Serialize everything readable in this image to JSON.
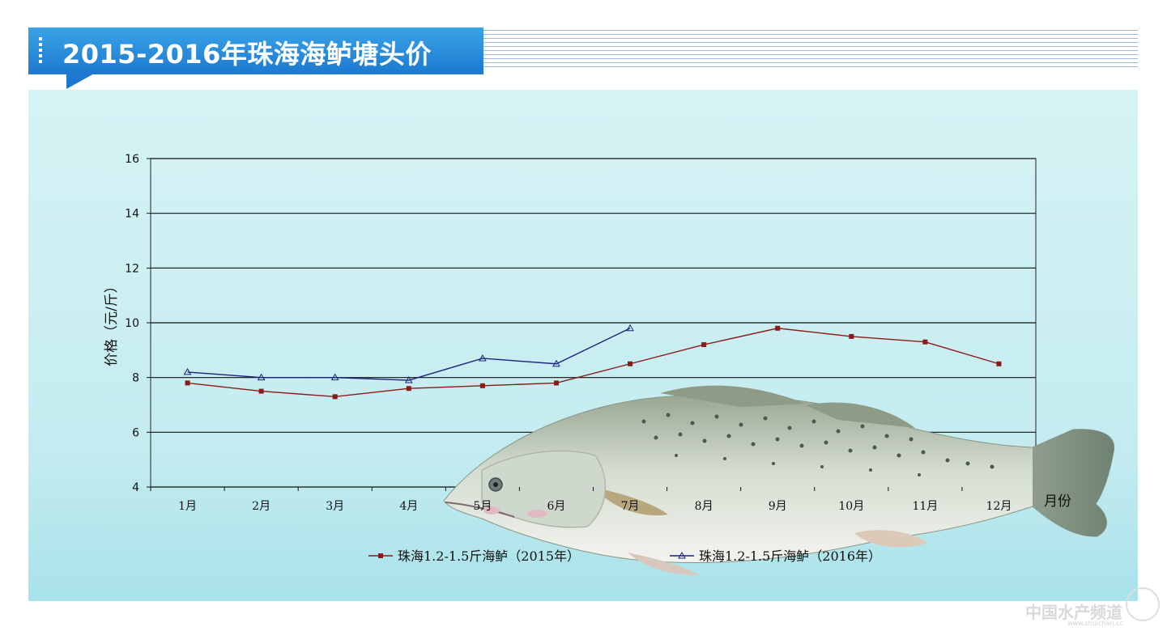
{
  "header": {
    "title": "2015-2016年珠海海鲈塘头价"
  },
  "watermark": {
    "text": "中国水产频道",
    "url": "www.shuichan.cc"
  },
  "colors": {
    "series_2015": "#8b1a1a",
    "series_2016": "#1a237e",
    "banner": "#1c78d0",
    "panel": "#d6f3f5"
  },
  "chart_data": {
    "type": "line",
    "title": "",
    "ylabel": "价格（元/斤）",
    "xlabel": "月份",
    "ylim": [
      4,
      16
    ],
    "yticks": [
      "4",
      "6",
      "8",
      "10",
      "12",
      "14",
      "16"
    ],
    "categories": [
      "1月",
      "2月",
      "3月",
      "4月",
      "5月",
      "6月",
      "7月",
      "8月",
      "9月",
      "10月",
      "11月",
      "12月"
    ],
    "grid": true,
    "legend_position": "bottom",
    "series": [
      {
        "name": "珠海1.2-1.5斤海鲈（2015年）",
        "marker": "square",
        "values": [
          7.8,
          7.5,
          7.3,
          7.6,
          7.7,
          7.8,
          8.5,
          9.2,
          9.8,
          9.5,
          9.3,
          8.5
        ]
      },
      {
        "name": "珠海1.2-1.5斤海鲈（2016年）",
        "marker": "triangle",
        "values": [
          8.2,
          8.0,
          8.0,
          7.9,
          8.7,
          8.5,
          9.8,
          null,
          null,
          null,
          null,
          null
        ]
      }
    ],
    "decoration": "sea-bass-illustration"
  }
}
